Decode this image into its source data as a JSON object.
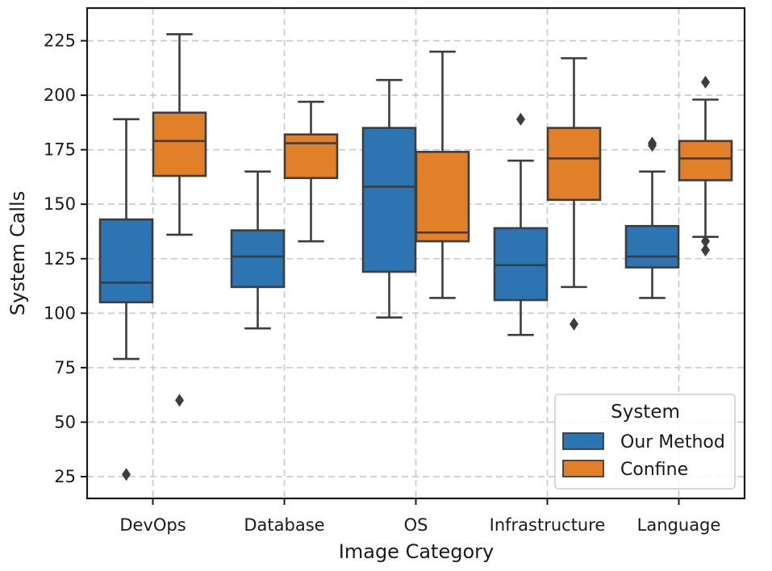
{
  "chart_data": {
    "type": "box",
    "xlabel": "Image Category",
    "ylabel": "System Calls",
    "ylim": [
      15,
      240
    ],
    "yticks": [
      25,
      50,
      75,
      100,
      125,
      150,
      175,
      200,
      225
    ],
    "grid": true,
    "categories": [
      "DevOps",
      "Database",
      "OS",
      "Infrastructure",
      "Language"
    ],
    "legend": {
      "title": "System",
      "position": "lower-right"
    },
    "series": [
      {
        "name": "Our Method",
        "color": "#2c75b2",
        "boxes": [
          {
            "whislo": 79,
            "q1": 105,
            "med": 114,
            "q3": 143,
            "whishi": 189,
            "fliers": [
              26
            ]
          },
          {
            "whislo": 93,
            "q1": 112,
            "med": 126,
            "q3": 138,
            "whishi": 165,
            "fliers": []
          },
          {
            "whislo": 98,
            "q1": 119,
            "med": 158,
            "q3": 185,
            "whishi": 207,
            "fliers": []
          },
          {
            "whislo": 90,
            "q1": 106,
            "med": 122,
            "q3": 139,
            "whishi": 170,
            "fliers": [
              189
            ]
          },
          {
            "whislo": 107,
            "q1": 121,
            "med": 126,
            "q3": 140,
            "whishi": 165,
            "fliers": [
              177,
              178
            ]
          }
        ]
      },
      {
        "name": "Confine",
        "color": "#e2802a",
        "boxes": [
          {
            "whislo": 136,
            "q1": 163,
            "med": 179,
            "q3": 192,
            "whishi": 228,
            "fliers": [
              60
            ]
          },
          {
            "whislo": 133,
            "q1": 162,
            "med": 178,
            "q3": 182,
            "whishi": 197,
            "fliers": []
          },
          {
            "whislo": 107,
            "q1": 133,
            "med": 137,
            "q3": 174,
            "whishi": 220,
            "fliers": []
          },
          {
            "whislo": 112,
            "q1": 152,
            "med": 171,
            "q3": 185,
            "whishi": 217,
            "fliers": [
              95
            ]
          },
          {
            "whislo": 135,
            "q1": 161,
            "med": 171,
            "q3": 179,
            "whishi": 198,
            "fliers": [
              129,
              133,
              206
            ]
          }
        ]
      }
    ]
  }
}
